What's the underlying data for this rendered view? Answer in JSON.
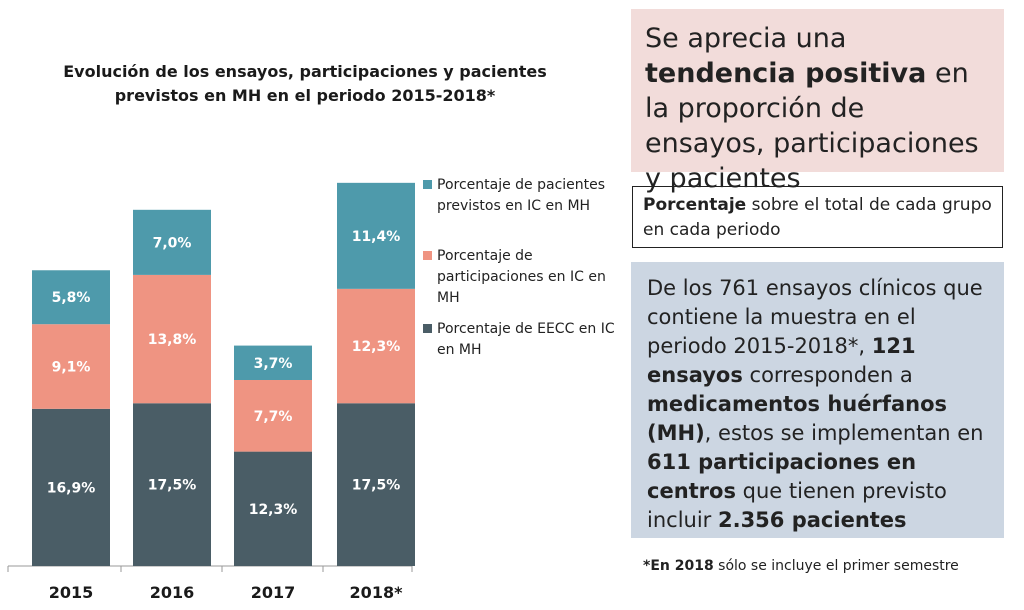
{
  "chart_data": {
    "type": "bar",
    "stacked": true,
    "title": "Evolución de los ensayos, participaciones y pacientes\nprevistos en MH en el periodo 2015-2018*",
    "categories": [
      "2015",
      "2016",
      "2017",
      "2018*"
    ],
    "series": [
      {
        "name": "Porcentaje de EECC en IC en MH",
        "values": [
          16.9,
          17.5,
          12.3,
          17.5
        ],
        "labels": [
          "16,9%",
          "17,5%",
          "12,3%",
          "17,5%"
        ],
        "color": "#4a5d66"
      },
      {
        "name": "Porcentaje de participaciones en IC en MH",
        "values": [
          9.1,
          13.8,
          7.7,
          12.3
        ],
        "labels": [
          "9,1%",
          "13,8%",
          "7,7%",
          "12,3%"
        ],
        "color": "#ef9482"
      },
      {
        "name": "Porcentaje de pacientes previstos en IC en MH",
        "values": [
          5.8,
          7.0,
          3.7,
          11.4
        ],
        "labels": [
          "5,8%",
          "7,0%",
          "3,7%",
          "11,4%"
        ],
        "color": "#4e9aab"
      }
    ],
    "legend_order": [
      2,
      1,
      0
    ],
    "legend_position": "right",
    "ylim": [
      0,
      41.2
    ],
    "grid": false,
    "y_axis_visible": false
  },
  "boxes": {
    "pink": {
      "parts": [
        {
          "text": "Se aprecia una ",
          "bold": false
        },
        {
          "text": "tendencia positiva",
          "bold": true
        },
        {
          "text": " en la proporción de ensayos, participaciones y pacientes",
          "bold": false
        }
      ],
      "color": "#f2dcda"
    },
    "white": {
      "parts": [
        {
          "text": "Porcentaje",
          "bold": true
        },
        {
          "text": " sobre el total de cada grupo en cada periodo",
          "bold": false
        }
      ]
    },
    "blue": {
      "parts": [
        {
          "text": "De los 761 ensayos clínicos que contiene la muestra en el periodo 2015-2018*, ",
          "bold": false
        },
        {
          "text": "121 ensayos",
          "bold": true
        },
        {
          "text": " corresponden a ",
          "bold": false
        },
        {
          "text": "medicamentos huérfanos (MH)",
          "bold": true
        },
        {
          "text": ", estos se implementan en ",
          "bold": false
        },
        {
          "text": "611 participaciones en centros",
          "bold": true
        },
        {
          "text": " que tienen previsto incluir ",
          "bold": false
        },
        {
          "text": "2.356 pacientes",
          "bold": true
        }
      ],
      "color": "#ccd6e2"
    }
  },
  "footnote": {
    "parts": [
      {
        "text": "*En 2018",
        "bold": true
      },
      {
        "text": " sólo se incluye el primer semestre",
        "bold": false
      }
    ]
  }
}
